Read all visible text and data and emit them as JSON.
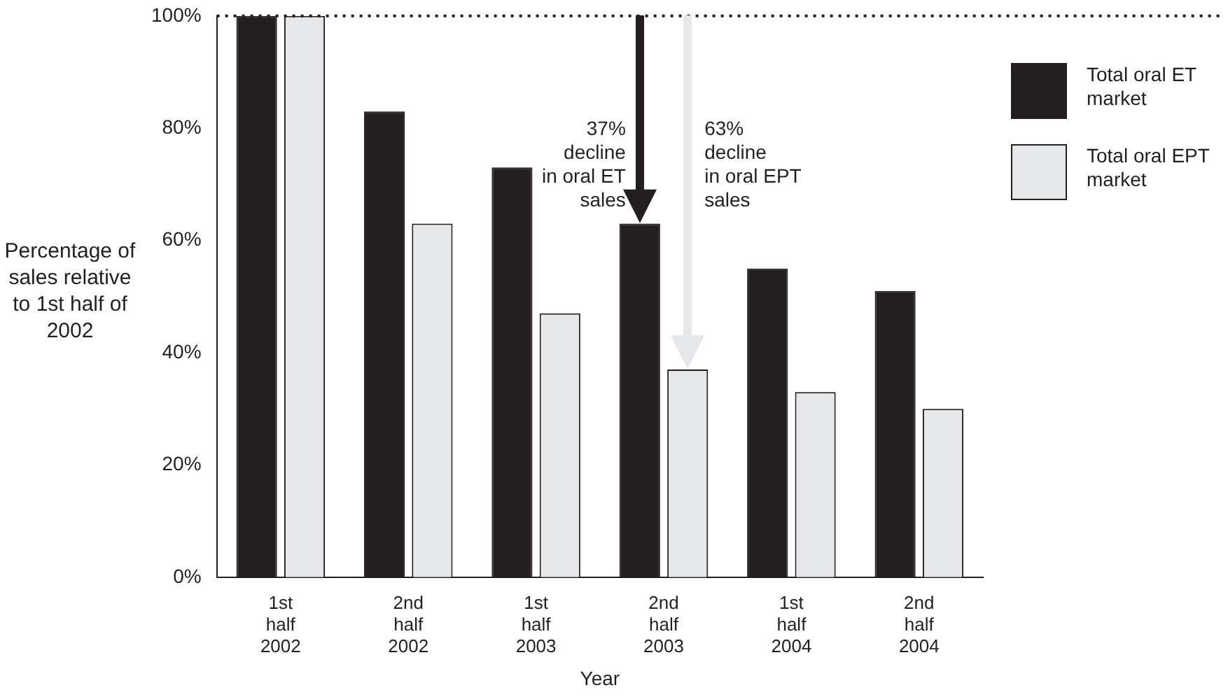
{
  "chart_data": {
    "type": "bar",
    "xlabel": "Year",
    "ylabel": "Percentage of sales relative to 1st half of 2002",
    "categories": [
      "1st half 2002",
      "2nd half 2002",
      "1st half 2003",
      "2nd half 2003",
      "1st half 2004",
      "2nd half 2004"
    ],
    "series": [
      {
        "name": "Total oral ET market",
        "color": "#231f20",
        "values": [
          100,
          83,
          73,
          63,
          55,
          51
        ]
      },
      {
        "name": "Total oral EPT market",
        "color": "#e6e7e8",
        "values": [
          100,
          63,
          47,
          37,
          33,
          30
        ]
      }
    ],
    "ylim": [
      0,
      100
    ],
    "yticks": [
      {
        "value": 0,
        "label": "0%"
      },
      {
        "value": 20,
        "label": "20%"
      },
      {
        "value": 40,
        "label": "40%"
      },
      {
        "value": 60,
        "label": "60%"
      },
      {
        "value": 80,
        "label": "80%"
      },
      {
        "value": 100,
        "label": "100%"
      }
    ],
    "ref_lines": [
      {
        "axis": "y",
        "value": 100,
        "line_style": "dotted",
        "color": "#231f20"
      }
    ],
    "annotations": [
      {
        "text": "37% decline in oral ET sales",
        "x": "2nd half 2003",
        "y": 63
      },
      "63% decline in oral EPT sales"
    ],
    "grid": false,
    "legend": "top right"
  }
}
